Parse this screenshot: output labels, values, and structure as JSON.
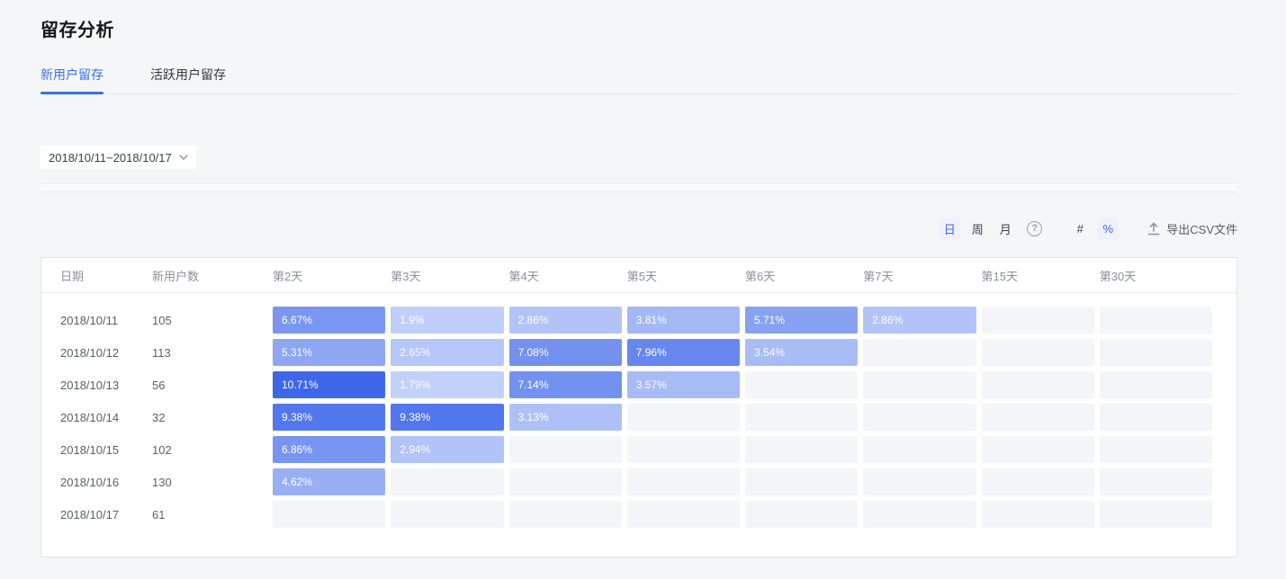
{
  "page": {
    "title": "留存分析"
  },
  "tabs": [
    {
      "label": "新用户留存",
      "active": true
    },
    {
      "label": "活跃用户留存",
      "active": false
    }
  ],
  "filters": {
    "date_range": "2018/10/11~2018/10/17"
  },
  "toolbar": {
    "granularity": [
      {
        "label": "日",
        "selected": true
      },
      {
        "label": "周",
        "selected": false
      },
      {
        "label": "月",
        "selected": false
      }
    ],
    "help": "?",
    "format": [
      {
        "label": "#",
        "selected": false
      },
      {
        "label": "%",
        "selected": true
      }
    ],
    "export_label": "导出CSV文件"
  },
  "table": {
    "columns": [
      "日期",
      "新用户数",
      "第2天",
      "第3天",
      "第4天",
      "第5天",
      "第6天",
      "第7天",
      "第15天",
      "第30天"
    ],
    "rows": [
      {
        "date": "2018/10/11",
        "new_users": "105",
        "retention": [
          "6.67%",
          "1.9%",
          "2.86%",
          "3.81%",
          "5.71%",
          "2.86%",
          null,
          null
        ]
      },
      {
        "date": "2018/10/12",
        "new_users": "113",
        "retention": [
          "5.31%",
          "2.65%",
          "7.08%",
          "7.96%",
          "3.54%",
          null,
          null,
          null
        ]
      },
      {
        "date": "2018/10/13",
        "new_users": "56",
        "retention": [
          "10.71%",
          "1.79%",
          "7.14%",
          "3.57%",
          null,
          null,
          null,
          null
        ]
      },
      {
        "date": "2018/10/14",
        "new_users": "32",
        "retention": [
          "9.38%",
          "9.38%",
          "3.13%",
          null,
          null,
          null,
          null,
          null
        ]
      },
      {
        "date": "2018/10/15",
        "new_users": "102",
        "retention": [
          "6.86%",
          "2.94%",
          null,
          null,
          null,
          null,
          null,
          null
        ]
      },
      {
        "date": "2018/10/16",
        "new_users": "130",
        "retention": [
          "4.62%",
          null,
          null,
          null,
          null,
          null,
          null,
          null
        ]
      },
      {
        "date": "2018/10/17",
        "new_users": "61",
        "retention": [
          null,
          null,
          null,
          null,
          null,
          null,
          null,
          null
        ]
      }
    ]
  },
  "colors": {
    "accent": "#3a6fe8",
    "heat_low": "#dce6fd",
    "heat_high": "#3e66e8",
    "heat_max_value": 10.71,
    "empty_cell": "#f4f5f8"
  }
}
